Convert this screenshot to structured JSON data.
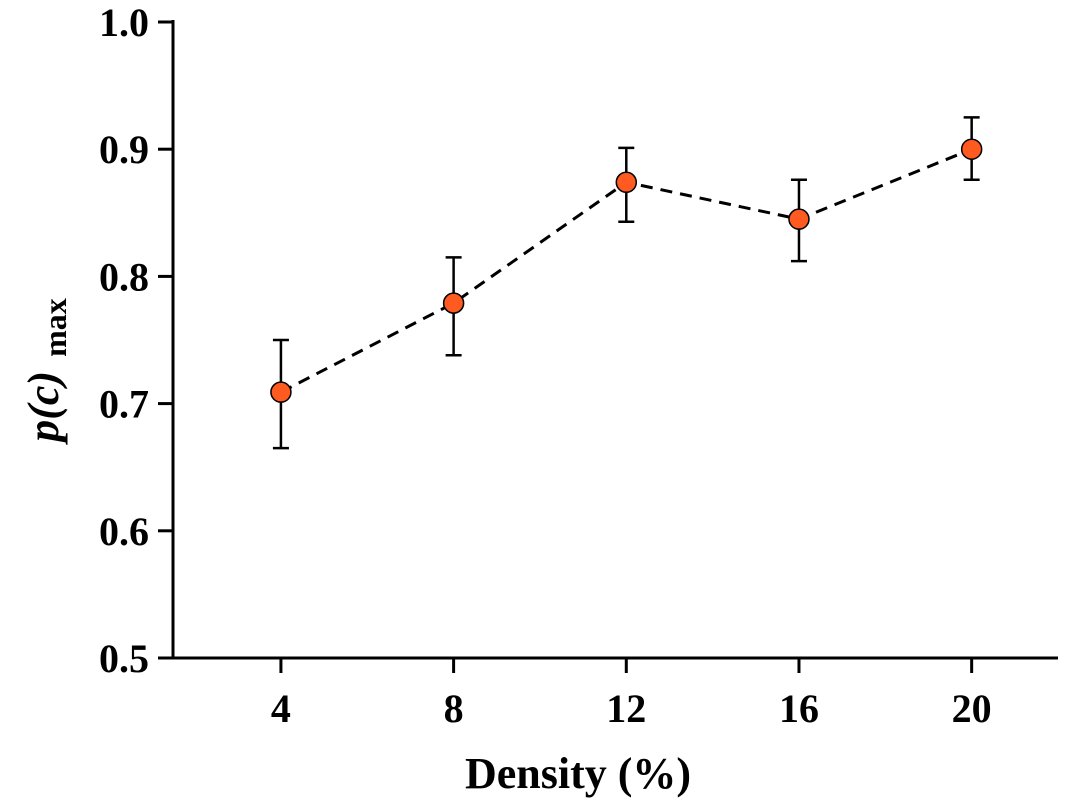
{
  "chart_data": {
    "type": "scatter",
    "title": "",
    "xlabel": "Density (%)",
    "ylabel": {
      "main": "p(c)",
      "subscript": "max"
    },
    "x_ticks": [
      "4",
      "8",
      "12",
      "16",
      "20"
    ],
    "y_ticks": [
      "0.5",
      "0.6",
      "0.7",
      "0.8",
      "0.9",
      "1.0"
    ],
    "xlim": [
      1.5,
      22
    ],
    "ylim": [
      0.5,
      1.0
    ],
    "grid": false,
    "legend": "none",
    "series": [
      {
        "x": [
          4,
          8,
          12,
          16,
          20
        ],
        "y": [
          0.709,
          0.779,
          0.874,
          0.845,
          0.9
        ],
        "err_low": [
          0.044,
          0.041,
          0.031,
          0.033,
          0.024
        ],
        "err_high": [
          0.041,
          0.036,
          0.027,
          0.031,
          0.025
        ],
        "line_style": "dashed",
        "line_color": "#000000",
        "marker": "circle",
        "marker_color": "#FF5A1F",
        "marker_edge": "#000000"
      }
    ]
  }
}
